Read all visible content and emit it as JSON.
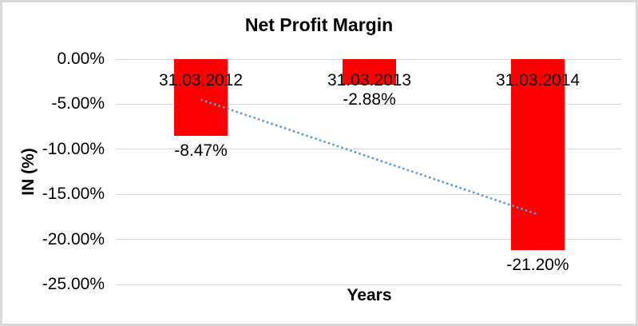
{
  "window": {
    "background": "#FFFFFF",
    "frame_border_color": "#D9D9D9"
  },
  "chart_data": {
    "type": "bar",
    "title": "Net Profit Margin",
    "x_axis": {
      "title": "Years"
    },
    "y_axis": {
      "title": "IN (%)",
      "min": -25,
      "max": 0,
      "ticks": [
        {
          "label": "0.00%",
          "value": 0
        },
        {
          "label": "-5.00%",
          "value": -5
        },
        {
          "label": "-10.00%",
          "value": -10
        },
        {
          "label": "-15.00%",
          "value": -15
        },
        {
          "label": "-20.00%",
          "value": -20
        },
        {
          "label": "-25.00%",
          "value": -25
        }
      ]
    },
    "categories": [
      "31.03.2012",
      "31.03.2013",
      "31.03.2014"
    ],
    "series": [
      {
        "name": "Net Profit Margin",
        "values": [
          -8.47,
          -2.88,
          -21.2
        ]
      }
    ],
    "data_labels": [
      "-8.47%",
      "-2.88%",
      "-21.20%"
    ],
    "bar_color": "#FF0000",
    "gridline_color": "#D9D9D9",
    "grid": true,
    "legend": false,
    "trendline": {
      "type": "linear",
      "style": "dotted",
      "color": "#5B9BD5",
      "start_value": -4.49,
      "end_value": -17.22
    }
  }
}
